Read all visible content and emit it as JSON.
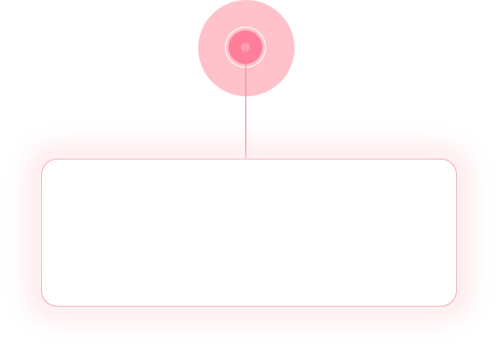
{
  "colors": {
    "halo": "#ffc2cb",
    "core": "#ff7f9a",
    "line": "#f48a9a",
    "card_border": "#f29aa6",
    "background": "#ffffff"
  },
  "marker": {
    "icon": "location-pin-dot-icon"
  },
  "card": {
    "text": ""
  }
}
